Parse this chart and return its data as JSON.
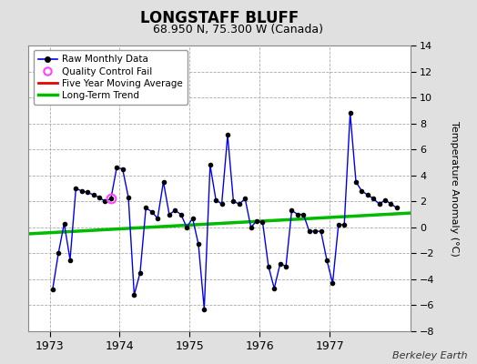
{
  "title": "LONGSTAFF BLUFF",
  "subtitle": "68.950 N, 75.300 W (Canada)",
  "ylabel": "Temperature Anomaly (°C)",
  "watermark": "Berkeley Earth",
  "ylim": [
    -8,
    14
  ],
  "yticks": [
    -8,
    -6,
    -4,
    -2,
    0,
    2,
    4,
    6,
    8,
    10,
    12,
    14
  ],
  "xlim_start": 1972.7,
  "xlim_end": 1978.15,
  "bg_color": "#e0e0e0",
  "plot_bg_color": "#ffffff",
  "raw_color": "#0000ee",
  "raw_marker_color": "#000000",
  "trend_color": "#00bb00",
  "mavg_color": "#ee0000",
  "qc_fail_color": "#ff44ff",
  "raw_monthly_data": [
    [
      1973.042,
      -4.8
    ],
    [
      1973.125,
      -2.0
    ],
    [
      1973.208,
      0.3
    ],
    [
      1973.292,
      -2.5
    ],
    [
      1973.375,
      3.0
    ],
    [
      1973.458,
      2.8
    ],
    [
      1973.542,
      2.7
    ],
    [
      1973.625,
      2.5
    ],
    [
      1973.708,
      2.3
    ],
    [
      1973.792,
      2.0
    ],
    [
      1973.875,
      2.2
    ],
    [
      1973.958,
      4.6
    ],
    [
      1974.042,
      4.5
    ],
    [
      1974.125,
      2.3
    ],
    [
      1974.208,
      -5.2
    ],
    [
      1974.292,
      -3.5
    ],
    [
      1974.375,
      1.5
    ],
    [
      1974.458,
      1.2
    ],
    [
      1974.542,
      0.7
    ],
    [
      1974.625,
      3.5
    ],
    [
      1974.708,
      1.0
    ],
    [
      1974.792,
      1.3
    ],
    [
      1974.875,
      1.0
    ],
    [
      1974.958,
      0.0
    ],
    [
      1975.042,
      0.7
    ],
    [
      1975.125,
      -1.3
    ],
    [
      1975.208,
      -6.3
    ],
    [
      1975.292,
      4.8
    ],
    [
      1975.375,
      2.1
    ],
    [
      1975.458,
      1.8
    ],
    [
      1975.542,
      7.1
    ],
    [
      1975.625,
      2.0
    ],
    [
      1975.708,
      1.8
    ],
    [
      1975.792,
      2.2
    ],
    [
      1975.875,
      0.0
    ],
    [
      1975.958,
      0.5
    ],
    [
      1976.042,
      0.4
    ],
    [
      1976.125,
      -3.0
    ],
    [
      1976.208,
      -4.7
    ],
    [
      1976.292,
      -2.8
    ],
    [
      1976.375,
      -3.0
    ],
    [
      1976.458,
      1.3
    ],
    [
      1976.542,
      1.0
    ],
    [
      1976.625,
      1.0
    ],
    [
      1976.708,
      -0.3
    ],
    [
      1976.792,
      -0.3
    ],
    [
      1976.875,
      -0.3
    ],
    [
      1976.958,
      -2.5
    ],
    [
      1977.042,
      -4.3
    ],
    [
      1977.125,
      0.2
    ],
    [
      1977.208,
      0.2
    ],
    [
      1977.292,
      8.8
    ],
    [
      1977.375,
      3.5
    ],
    [
      1977.458,
      2.8
    ],
    [
      1977.542,
      2.5
    ],
    [
      1977.625,
      2.2
    ],
    [
      1977.708,
      1.8
    ],
    [
      1977.792,
      2.1
    ],
    [
      1977.875,
      1.8
    ],
    [
      1977.958,
      1.5
    ]
  ],
  "qc_fail_points": [
    [
      1973.875,
      2.2
    ]
  ],
  "trend_x": [
    1972.7,
    1978.15
  ],
  "trend_y": [
    -0.5,
    1.1
  ],
  "xticks": [
    1973,
    1974,
    1975,
    1976,
    1977
  ]
}
